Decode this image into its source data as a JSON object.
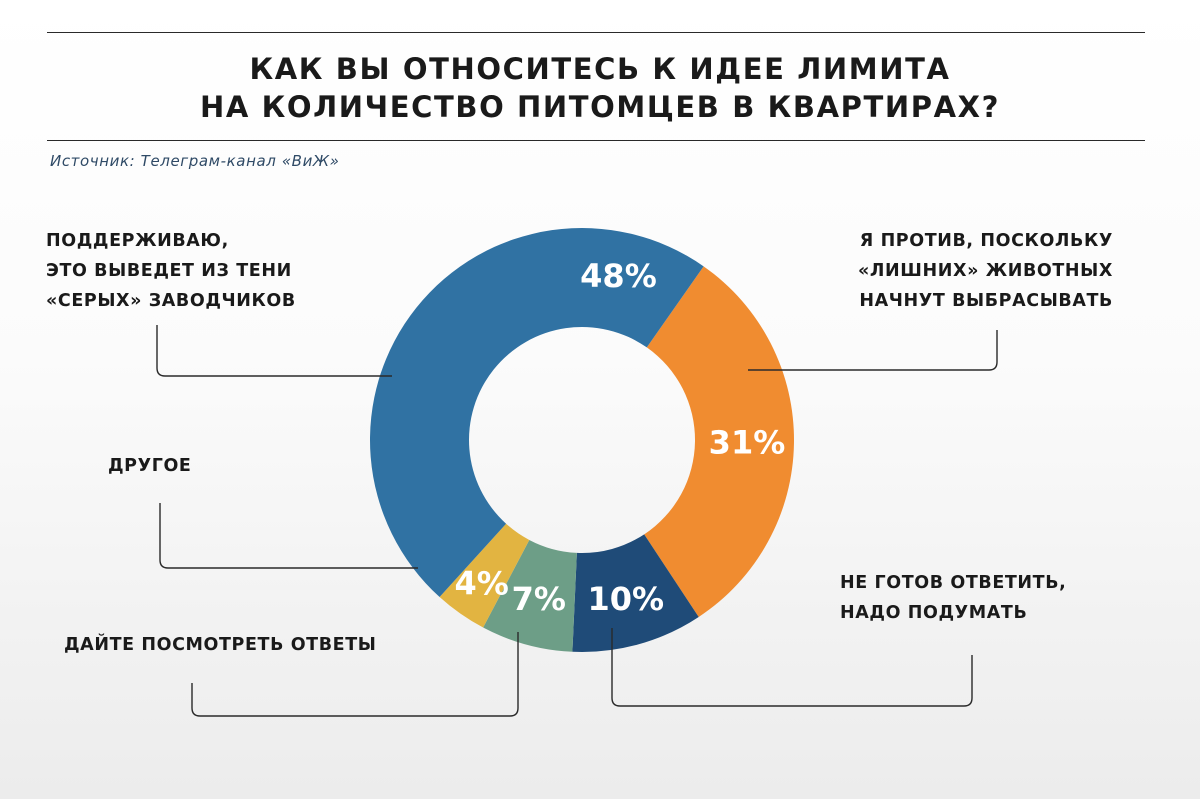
{
  "header": {
    "title_lines": [
      "КАК ВЫ ОТНОСИТЕСЬ К ИДЕЕ ЛИМИТА",
      "НА КОЛИЧЕСТВО ПИТОМЦЕВ В КВАРТИРАХ?"
    ],
    "source": "Источник: Телеграм-канал «ВиЖ»"
  },
  "chart_data": {
    "type": "pie",
    "title": "КАК ВЫ ОТНОСИТЕСЬ К ИДЕЕ ЛИМИТА НА КОЛИЧЕСТВО ПИТОМЦЕВ В КВАРТИРАХ?",
    "donut": true,
    "slices": [
      {
        "label_lines": [
          "Я ПРОТИВ, ПОСКОЛЬКУ",
          "«ЛИШНИХ» ЖИВОТНЫХ",
          "НАЧНУТ ВЫБРАСЫВАТЬ"
        ],
        "value": 31,
        "value_label": "31%",
        "color": "#f08c30"
      },
      {
        "label_lines": [
          "НЕ ГОТОВ ОТВЕТИТЬ,",
          "НАДО ПОДУМАТЬ"
        ],
        "value": 10,
        "value_label": "10%",
        "color": "#1f4b78"
      },
      {
        "label_lines": [
          "ДАЙТЕ ПОСМОТРЕТЬ ОТВЕТЫ"
        ],
        "value": 7,
        "value_label": "7%",
        "color": "#6d9e87"
      },
      {
        "label_lines": [
          "ДРУГОЕ"
        ],
        "value": 4,
        "value_label": "4%",
        "color": "#e2b441"
      },
      {
        "label_lines": [
          "ПОДДЕРЖИВАЮ,",
          "ЭТО ВЫВЕДЕТ ИЗ ТЕНИ",
          "«СЕРЫХ» ЗАВОДЧИКОВ"
        ],
        "value": 48,
        "value_label": "48%",
        "color": "#3072a3"
      }
    ]
  }
}
